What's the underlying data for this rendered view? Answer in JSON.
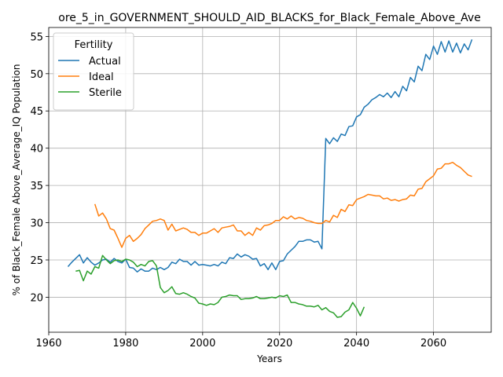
{
  "chart_data": {
    "type": "line",
    "title": "ore_5_in_GOVERNMENT_SHOULD_AID_BLACKS_for_Black_Female_Above_Ave",
    "xlabel": "Years",
    "ylabel": "% of Black_Female Above_Average_IQ Population",
    "xlim": [
      1960,
      2075
    ],
    "ylim": [
      15.3,
      56.2
    ],
    "xticks": [
      1960,
      1980,
      2000,
      2020,
      2040,
      2060
    ],
    "yticks": [
      20,
      25,
      30,
      35,
      40,
      45,
      50,
      55
    ],
    "grid": true,
    "legend": {
      "title": "Fertility",
      "position": "top-left"
    },
    "series": [
      {
        "name": "Actual",
        "color": "#1f77b4",
        "x": [
          1965,
          1966,
          1967,
          1968,
          1969,
          1970,
          1971,
          1972,
          1973,
          1974,
          1975,
          1976,
          1977,
          1978,
          1979,
          1980,
          1981,
          1982,
          1983,
          1984,
          1985,
          1986,
          1987,
          1988,
          1989,
          1990,
          1991,
          1992,
          1993,
          1994,
          1995,
          1996,
          1997,
          1998,
          1999,
          2000,
          2001,
          2002,
          2003,
          2004,
          2005,
          2006,
          2007,
          2008,
          2009,
          2010,
          2011,
          2012,
          2013,
          2014,
          2015,
          2016,
          2017,
          2018,
          2019,
          2020,
          2021,
          2022,
          2023,
          2024,
          2025,
          2026,
          2027,
          2028,
          2029,
          2030,
          2031,
          2032,
          2033,
          2034,
          2035,
          2036,
          2037,
          2038,
          2039,
          2040,
          2041,
          2042,
          2043,
          2044,
          2045,
          2046,
          2047,
          2048,
          2049,
          2050,
          2051,
          2052,
          2053,
          2054,
          2055,
          2056,
          2057,
          2058,
          2059,
          2060,
          2061,
          2062,
          2063,
          2064,
          2065,
          2066,
          2067,
          2068,
          2069,
          2070
        ],
        "values": [
          24.1,
          24.7,
          25.2,
          25.7,
          24.6,
          25.3,
          24.7,
          24.3,
          24.6,
          25.0,
          25.1,
          24.7,
          25.2,
          24.8,
          24.6,
          25.1,
          24.0,
          23.9,
          23.4,
          23.8,
          23.5,
          23.5,
          23.9,
          23.7,
          24.0,
          23.7,
          24.0,
          24.7,
          24.5,
          25.1,
          24.8,
          24.8,
          24.3,
          24.8,
          24.3,
          24.4,
          24.3,
          24.2,
          24.4,
          24.2,
          24.7,
          24.5,
          25.3,
          25.2,
          25.8,
          25.4,
          25.7,
          25.5,
          25.1,
          25.2,
          24.2,
          24.5,
          23.7,
          24.6,
          23.7,
          24.8,
          24.9,
          25.8,
          26.3,
          26.8,
          27.5,
          27.5,
          27.7,
          27.7,
          27.4,
          27.5,
          26.5,
          41.3,
          40.6,
          41.4,
          40.9,
          41.9,
          41.7,
          42.9,
          43.0,
          44.2,
          44.5,
          45.5,
          45.9,
          46.5,
          46.8,
          47.2,
          46.9,
          47.4,
          46.8,
          47.6,
          46.9,
          48.3,
          47.7,
          49.5,
          48.9,
          51.0,
          50.4,
          52.6,
          51.9,
          53.7,
          52.6,
          54.3,
          52.9,
          54.4,
          52.9,
          54.1,
          52.8,
          54.0,
          53.2,
          54.6
        ]
      },
      {
        "name": "Ideal",
        "color": "#ff7f0e",
        "x": [
          1972,
          1973,
          1974,
          1975,
          1976,
          1977,
          1978,
          1979,
          1980,
          1981,
          1982,
          1983,
          1984,
          1985,
          1986,
          1987,
          1988,
          1989,
          1990,
          1991,
          1992,
          1993,
          1994,
          1995,
          1996,
          1997,
          1998,
          1999,
          2000,
          2001,
          2002,
          2003,
          2004,
          2005,
          2006,
          2007,
          2008,
          2009,
          2010,
          2011,
          2012,
          2013,
          2014,
          2015,
          2016,
          2017,
          2018,
          2019,
          2020,
          2021,
          2022,
          2023,
          2024,
          2025,
          2026,
          2027,
          2028,
          2029,
          2030,
          2031,
          2032,
          2033,
          2034,
          2035,
          2036,
          2037,
          2038,
          2039,
          2040,
          2041,
          2042,
          2043,
          2044,
          2045,
          2046,
          2047,
          2048,
          2049,
          2050,
          2051,
          2052,
          2053,
          2054,
          2055,
          2056,
          2057,
          2058,
          2059,
          2060,
          2061,
          2062,
          2063,
          2064,
          2065,
          2066,
          2067,
          2068,
          2069,
          2070
        ],
        "values": [
          32.5,
          30.9,
          31.3,
          30.5,
          29.2,
          29.0,
          27.9,
          26.7,
          27.9,
          28.3,
          27.5,
          27.9,
          28.4,
          29.2,
          29.7,
          30.2,
          30.3,
          30.5,
          30.3,
          29.0,
          29.8,
          28.9,
          29.1,
          29.3,
          29.1,
          28.7,
          28.7,
          28.3,
          28.6,
          28.6,
          28.9,
          29.2,
          28.7,
          29.3,
          29.4,
          29.5,
          29.7,
          28.9,
          28.9,
          28.3,
          28.7,
          28.3,
          29.3,
          29.0,
          29.6,
          29.7,
          29.9,
          30.3,
          30.3,
          30.8,
          30.5,
          30.9,
          30.5,
          30.7,
          30.6,
          30.3,
          30.2,
          30.0,
          29.9,
          29.9,
          30.3,
          30.1,
          31.0,
          30.7,
          31.8,
          31.5,
          32.4,
          32.3,
          33.1,
          33.3,
          33.5,
          33.8,
          33.7,
          33.6,
          33.6,
          33.2,
          33.3,
          33.0,
          33.1,
          32.9,
          33.1,
          33.2,
          33.7,
          33.6,
          34.5,
          34.6,
          35.5,
          35.9,
          36.3,
          37.2,
          37.3,
          37.9,
          37.9,
          38.1,
          37.7,
          37.4,
          36.9,
          36.4,
          36.2
        ]
      },
      {
        "name": "Sterile",
        "color": "#2ca02c",
        "x": [
          1967,
          1968,
          1969,
          1970,
          1971,
          1972,
          1973,
          1974,
          1975,
          1976,
          1977,
          1978,
          1979,
          1980,
          1981,
          1982,
          1983,
          1984,
          1985,
          1986,
          1987,
          1988,
          1989,
          1990,
          1991,
          1992,
          1993,
          1994,
          1995,
          1996,
          1997,
          1998,
          1999,
          2000,
          2001,
          2002,
          2003,
          2004,
          2005,
          2006,
          2007,
          2008,
          2009,
          2010,
          2011,
          2012,
          2013,
          2014,
          2015,
          2016,
          2017,
          2018,
          2019,
          2020,
          2021,
          2022,
          2023,
          2024,
          2025,
          2026,
          2027,
          2028,
          2029,
          2030,
          2031,
          2032,
          2033,
          2034,
          2035,
          2036,
          2037,
          2038,
          2039,
          2040,
          2041,
          2042
        ],
        "values": [
          23.5,
          23.6,
          22.2,
          23.5,
          23.1,
          24.1,
          23.9,
          25.6,
          25.0,
          24.5,
          24.9,
          25.0,
          24.8,
          25.1,
          25.0,
          24.7,
          24.1,
          24.4,
          24.2,
          24.8,
          24.9,
          24.2,
          21.3,
          20.6,
          20.9,
          21.4,
          20.5,
          20.4,
          20.6,
          20.4,
          20.1,
          19.9,
          19.2,
          19.1,
          18.9,
          19.1,
          19.0,
          19.3,
          20.0,
          20.1,
          20.3,
          20.2,
          20.2,
          19.7,
          19.8,
          19.8,
          19.9,
          20.1,
          19.8,
          19.8,
          19.9,
          20.0,
          19.9,
          20.2,
          20.1,
          20.3,
          19.3,
          19.3,
          19.1,
          19.0,
          18.8,
          18.8,
          18.7,
          18.9,
          18.3,
          18.6,
          18.1,
          17.9,
          17.3,
          17.4,
          18.0,
          18.3,
          19.3,
          18.5,
          17.5,
          18.7
        ]
      }
    ]
  }
}
